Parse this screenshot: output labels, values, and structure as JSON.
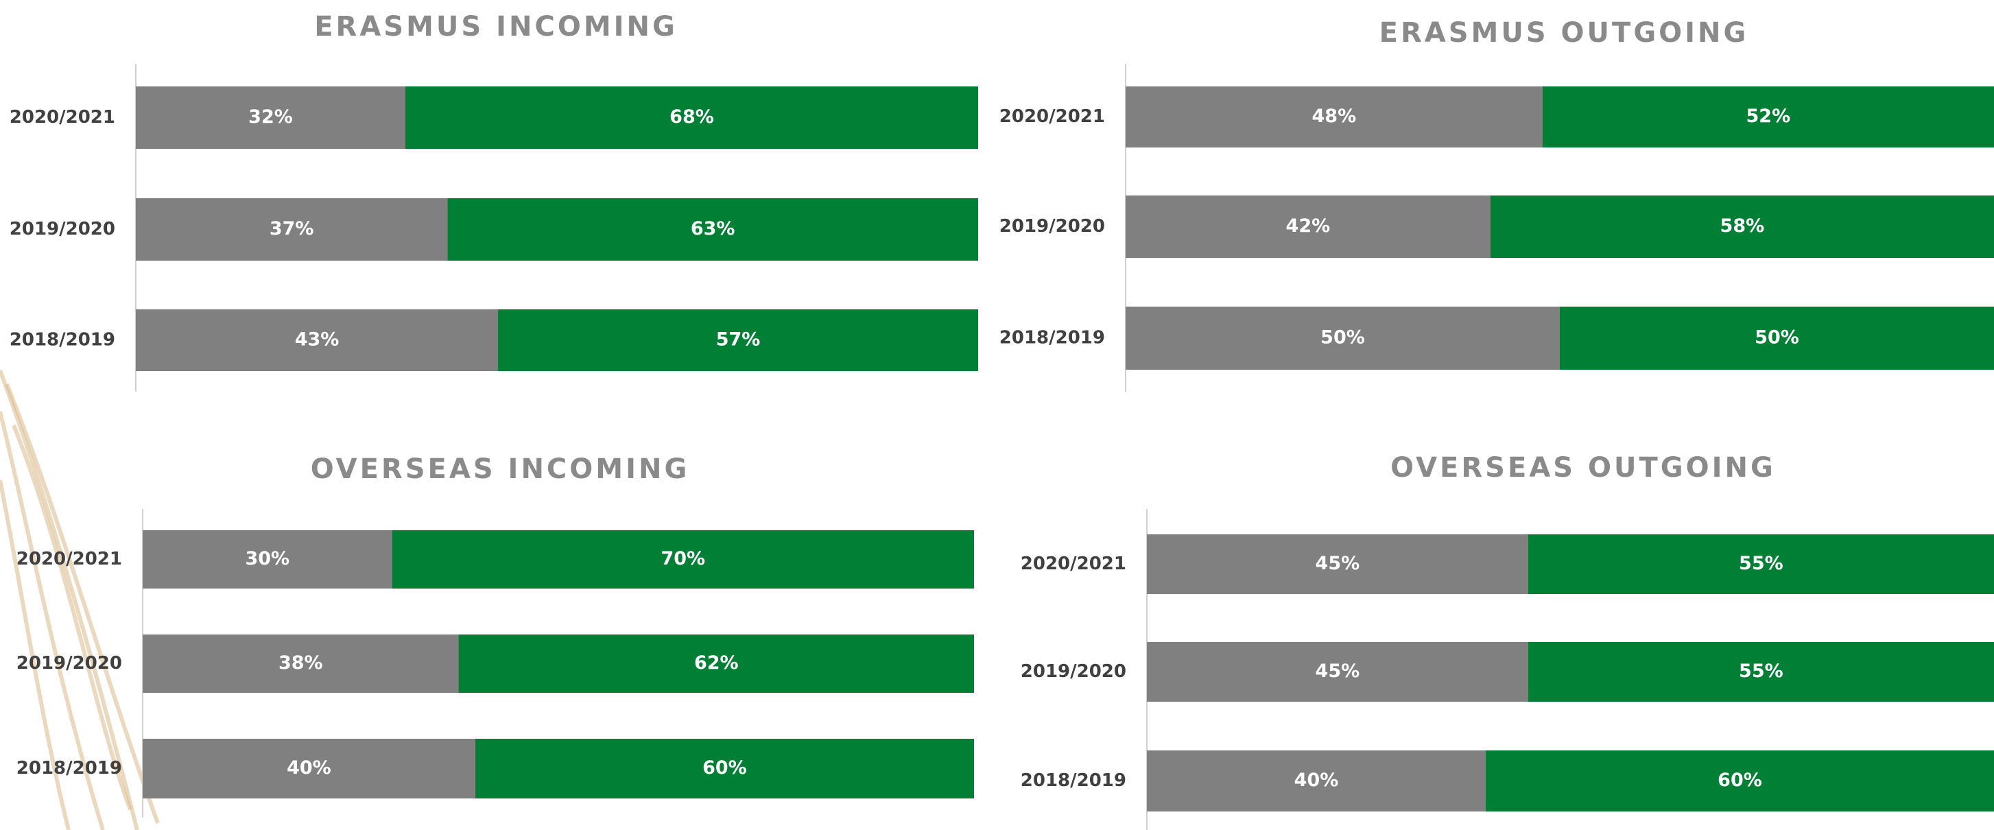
{
  "chart_data": [
    {
      "type": "bar",
      "orientation": "horizontal",
      "stacked": true,
      "title": "ERASMUS INCOMING",
      "categories": [
        "2020/2021",
        "2019/2020",
        "2018/2019"
      ],
      "xlim": [
        0,
        100
      ],
      "series": [
        {
          "color": "#808080",
          "values": [
            32,
            37,
            43
          ],
          "value_labels": [
            "32%",
            "37%",
            "43%"
          ]
        },
        {
          "color": "#007f35",
          "values": [
            68,
            63,
            57
          ],
          "value_labels": [
            "68%",
            "63%",
            "57%"
          ]
        }
      ]
    },
    {
      "type": "bar",
      "orientation": "horizontal",
      "stacked": true,
      "title": "ERASMUS OUTGOING",
      "categories": [
        "2020/2021",
        "2019/2020",
        "2018/2019"
      ],
      "xlim": [
        0,
        100
      ],
      "series": [
        {
          "color": "#808080",
          "values": [
            48,
            42,
            50
          ],
          "value_labels": [
            "48%",
            "42%",
            "50%"
          ]
        },
        {
          "color": "#007f35",
          "values": [
            52,
            58,
            50
          ],
          "value_labels": [
            "52%",
            "58%",
            "50%"
          ]
        }
      ]
    },
    {
      "type": "bar",
      "orientation": "horizontal",
      "stacked": true,
      "title": "OVERSEAS INCOMING",
      "categories": [
        "2020/2021",
        "2019/2020",
        "2018/2019"
      ],
      "xlim": [
        0,
        100
      ],
      "series": [
        {
          "color": "#808080",
          "values": [
            30,
            38,
            40
          ],
          "value_labels": [
            "30%",
            "38%",
            "40%"
          ]
        },
        {
          "color": "#007f35",
          "values": [
            70,
            62,
            60
          ],
          "value_labels": [
            "70%",
            "62%",
            "60%"
          ]
        }
      ]
    },
    {
      "type": "bar",
      "orientation": "horizontal",
      "stacked": true,
      "title": "OVERSEAS OUTGOING",
      "categories": [
        "2020/2021",
        "2019/2020",
        "2018/2019"
      ],
      "xlim": [
        0,
        100
      ],
      "series": [
        {
          "color": "#808080",
          "values": [
            45,
            45,
            40
          ],
          "value_labels": [
            "45%",
            "45%",
            "40%"
          ]
        },
        {
          "color": "#007f35",
          "values": [
            55,
            55,
            60
          ],
          "value_labels": [
            "55%",
            "55%",
            "60%"
          ]
        }
      ]
    }
  ]
}
